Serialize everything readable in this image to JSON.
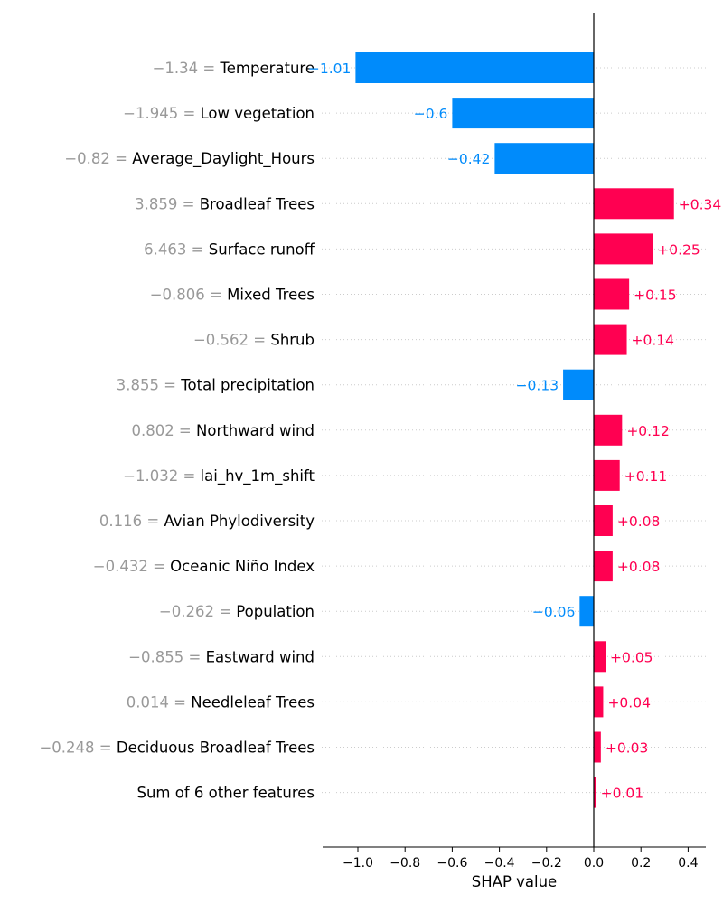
{
  "chart_data": {
    "type": "bar",
    "orientation": "horizontal",
    "xlabel": "SHAP value",
    "xlim": [
      -1.15,
      0.47
    ],
    "xticks": [
      "−1.0",
      "−0.8",
      "−0.6",
      "−0.4",
      "−0.2",
      "0.0",
      "0.2",
      "0.4"
    ],
    "xtick_values": [
      -1.0,
      -0.8,
      -0.6,
      -0.4,
      -0.2,
      0.0,
      0.2,
      0.4
    ],
    "grid": "dotted horizontal lines per row",
    "colors": {
      "positive": "#ff0051",
      "negative": "#008bfb",
      "feature_value": "#999999"
    },
    "rows": [
      {
        "value": "−1.34",
        "feature": "Temperature",
        "shap": -1.01,
        "label": "−1.01"
      },
      {
        "value": "−1.945",
        "feature": "Low vegetation",
        "shap": -0.6,
        "label": "−0.6"
      },
      {
        "value": "−0.82",
        "feature": "Average_Daylight_Hours",
        "shap": -0.42,
        "label": "−0.42"
      },
      {
        "value": "3.859",
        "feature": "Broadleaf Trees",
        "shap": 0.34,
        "label": "+0.34"
      },
      {
        "value": "6.463",
        "feature": "Surface runoff",
        "shap": 0.25,
        "label": "+0.25"
      },
      {
        "value": "−0.806",
        "feature": "Mixed Trees",
        "shap": 0.15,
        "label": "+0.15"
      },
      {
        "value": "−0.562",
        "feature": "Shrub",
        "shap": 0.14,
        "label": "+0.14"
      },
      {
        "value": "3.855",
        "feature": "Total precipitation",
        "shap": -0.13,
        "label": "−0.13"
      },
      {
        "value": "0.802",
        "feature": "Northward wind",
        "shap": 0.12,
        "label": "+0.12"
      },
      {
        "value": "−1.032",
        "feature": "lai_hv_1m_shift",
        "shap": 0.11,
        "label": "+0.11"
      },
      {
        "value": "0.116",
        "feature": "Avian Phylodiversity",
        "shap": 0.08,
        "label": "+0.08"
      },
      {
        "value": "−0.432",
        "feature": "Oceanic Niño Index",
        "shap": 0.08,
        "label": "+0.08"
      },
      {
        "value": "−0.262",
        "feature": "Population",
        "shap": -0.06,
        "label": "−0.06"
      },
      {
        "value": "−0.855",
        "feature": "Eastward wind",
        "shap": 0.05,
        "label": "+0.05"
      },
      {
        "value": "0.014",
        "feature": "Needleleaf Trees",
        "shap": 0.04,
        "label": "+0.04"
      },
      {
        "value": "−0.248",
        "feature": "Deciduous Broadleaf Trees",
        "shap": 0.03,
        "label": "+0.03"
      },
      {
        "value": "",
        "feature": "Sum of 6 other features",
        "shap": 0.01,
        "label": "+0.01"
      }
    ]
  }
}
